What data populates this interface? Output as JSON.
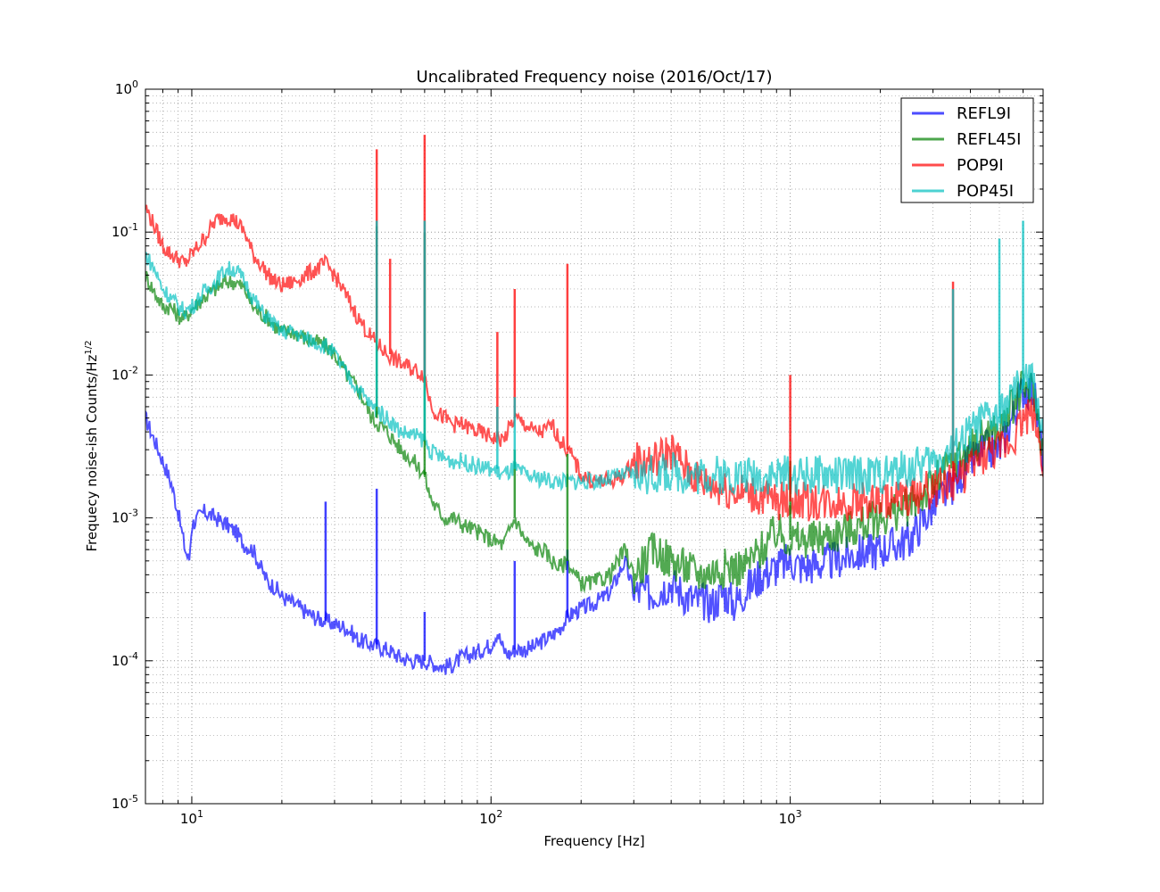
{
  "chart_data": {
    "type": "line",
    "title": "Uncalibrated Frequency noise (2016/Oct/17)",
    "xlabel": "Frequency [Hz]",
    "ylabel": "Frequecy noise-ish Counts/Hz",
    "ylabel_exponent": "1/2",
    "x_scale": "log",
    "y_scale": "log",
    "xlim": [
      7,
      7000
    ],
    "ylim": [
      1e-05,
      1
    ],
    "grid": true,
    "legend_position": "top-right",
    "x_ticks": [
      {
        "value": 10,
        "base": "10",
        "exp": "1"
      },
      {
        "value": 100,
        "base": "10",
        "exp": "2"
      },
      {
        "value": 1000,
        "base": "10",
        "exp": "3"
      }
    ],
    "y_ticks": [
      {
        "value": 1,
        "base": "10",
        "exp": "0"
      },
      {
        "value": 0.1,
        "base": "10",
        "exp": "-1"
      },
      {
        "value": 0.01,
        "base": "10",
        "exp": "-2"
      },
      {
        "value": 0.001,
        "base": "10",
        "exp": "-3"
      },
      {
        "value": 0.0001,
        "base": "10",
        "exp": "-4"
      },
      {
        "value": 1e-05,
        "base": "10",
        "exp": "-5"
      }
    ],
    "series": [
      {
        "name": "REFL9I",
        "color": "#0000ff",
        "x": [
          7,
          7.5,
          8,
          8.5,
          9,
          9.5,
          9.8,
          10,
          10.5,
          11,
          11.5,
          12,
          13,
          14,
          15,
          16,
          17,
          18,
          19,
          20,
          22,
          24,
          26,
          28,
          30,
          33,
          36,
          40,
          45,
          50,
          55,
          60,
          65,
          70,
          75,
          80,
          90,
          100,
          105,
          110,
          115,
          120,
          130,
          140,
          150,
          160,
          170,
          180,
          190,
          200,
          220,
          250,
          280,
          300,
          350,
          400,
          450,
          500,
          550,
          600,
          650,
          700,
          800,
          900,
          1000,
          1100,
          1200,
          1400,
          1600,
          2000,
          2500,
          3000,
          3500,
          4000,
          4500,
          5000,
          5500,
          6000,
          6500,
          7000
        ],
        "y": [
          0.005,
          0.0035,
          0.0025,
          0.0018,
          0.0011,
          0.0006,
          0.0005,
          0.0009,
          0.001,
          0.0011,
          0.00105,
          0.001,
          0.0009,
          0.0008,
          0.00065,
          0.0006,
          0.00045,
          0.00035,
          0.00033,
          0.00028,
          0.00025,
          0.00022,
          0.0002,
          0.00019,
          0.00018,
          0.00017,
          0.00014,
          0.00013,
          0.00012,
          0.000105,
          0.0001,
          0.0001,
          9.5e-05,
          9e-05,
          9.5e-05,
          0.000105,
          0.000115,
          0.00013,
          0.00016,
          0.00012,
          0.00011,
          0.00012,
          0.00012,
          0.000125,
          0.00014,
          0.00015,
          0.00017,
          0.0002,
          0.00022,
          0.00023,
          0.00025,
          0.0003,
          0.0005,
          0.0003,
          0.0003,
          0.00035,
          0.00028,
          0.00026,
          0.00025,
          0.0003,
          0.00025,
          0.0003,
          0.0004,
          0.00045,
          0.0005,
          0.00045,
          0.00047,
          0.0005,
          0.00055,
          0.0006,
          0.0007,
          0.0012,
          0.0017,
          0.0025,
          0.003,
          0.003,
          0.005,
          0.008,
          0.008,
          0.0025
        ]
      },
      {
        "name": "REFL45I",
        "color": "#008000",
        "x": [
          7,
          7.5,
          8,
          8.5,
          9,
          9.5,
          10,
          11,
          12,
          13,
          14,
          15,
          16,
          17,
          18,
          19,
          20,
          22,
          24,
          26,
          28,
          30,
          33,
          36,
          40,
          45,
          50,
          55,
          60,
          62,
          65,
          70,
          75,
          80,
          90,
          100,
          110,
          120,
          130,
          140,
          150,
          160,
          170,
          180,
          190,
          200,
          220,
          250,
          280,
          300,
          350,
          400,
          450,
          500,
          600,
          700,
          800,
          900,
          1000,
          1200,
          1500,
          2000,
          2500,
          3000,
          3500,
          4000,
          4500,
          5000,
          5500,
          6000,
          6500,
          7000
        ],
        "y": [
          0.05,
          0.038,
          0.03,
          0.03,
          0.026,
          0.025,
          0.029,
          0.035,
          0.04,
          0.045,
          0.045,
          0.04,
          0.03,
          0.027,
          0.025,
          0.022,
          0.02,
          0.02,
          0.018,
          0.017,
          0.016,
          0.014,
          0.01,
          0.008,
          0.005,
          0.004,
          0.003,
          0.0025,
          0.002,
          0.0015,
          0.0012,
          0.001,
          0.001,
          0.0009,
          0.0008,
          0.0007,
          0.00065,
          0.001,
          0.0007,
          0.0006,
          0.0006,
          0.0005,
          0.00045,
          0.0005,
          0.0004,
          0.00035,
          0.00035,
          0.0004,
          0.0006,
          0.0004,
          0.0006,
          0.0005,
          0.00045,
          0.0004,
          0.00045,
          0.00045,
          0.0006,
          0.0008,
          0.0007,
          0.0007,
          0.0008,
          0.001,
          0.0012,
          0.0017,
          0.0025,
          0.003,
          0.004,
          0.004,
          0.006,
          0.008,
          0.008,
          0.003
        ]
      },
      {
        "name": "POP9I",
        "color": "#ff0000",
        "x": [
          7,
          7.5,
          8,
          8.5,
          9,
          9.5,
          10,
          11,
          12,
          13,
          14,
          15,
          16,
          17,
          18,
          19,
          20,
          22,
          24,
          26,
          28,
          30,
          33,
          36,
          40,
          45,
          50,
          55,
          60,
          62,
          65,
          70,
          75,
          80,
          90,
          100,
          110,
          120,
          130,
          140,
          150,
          160,
          170,
          180,
          190,
          200,
          220,
          250,
          280,
          300,
          350,
          400,
          450,
          500,
          600,
          700,
          800,
          900,
          1000,
          1200,
          1500,
          2000,
          2500,
          3000,
          3500,
          4000,
          4500,
          5000,
          5500,
          6000,
          6500,
          7000
        ],
        "y": [
          0.15,
          0.11,
          0.08,
          0.07,
          0.065,
          0.06,
          0.07,
          0.09,
          0.12,
          0.13,
          0.12,
          0.1,
          0.07,
          0.06,
          0.05,
          0.045,
          0.042,
          0.045,
          0.05,
          0.055,
          0.06,
          0.05,
          0.035,
          0.025,
          0.018,
          0.014,
          0.012,
          0.011,
          0.01,
          0.007,
          0.0055,
          0.005,
          0.0045,
          0.0045,
          0.004,
          0.0037,
          0.0035,
          0.005,
          0.0045,
          0.004,
          0.004,
          0.0045,
          0.0035,
          0.003,
          0.0025,
          0.002,
          0.0018,
          0.0018,
          0.002,
          0.0025,
          0.0025,
          0.003,
          0.0022,
          0.0018,
          0.0016,
          0.0015,
          0.0014,
          0.0013,
          0.0013,
          0.0013,
          0.0013,
          0.0013,
          0.0014,
          0.0016,
          0.0018,
          0.0022,
          0.0028,
          0.003,
          0.0035,
          0.005,
          0.0055,
          0.0025
        ]
      },
      {
        "name": "POP45I",
        "color": "#00bfbf",
        "x": [
          7,
          7.5,
          8,
          8.5,
          9,
          9.5,
          10,
          11,
          12,
          13,
          14,
          15,
          16,
          17,
          18,
          19,
          20,
          22,
          24,
          26,
          28,
          30,
          33,
          36,
          40,
          45,
          50,
          55,
          60,
          62,
          65,
          70,
          75,
          80,
          90,
          100,
          110,
          120,
          130,
          140,
          150,
          160,
          170,
          180,
          190,
          200,
          220,
          250,
          280,
          300,
          350,
          400,
          450,
          500,
          600,
          700,
          800,
          900,
          1000,
          1200,
          1500,
          2000,
          2500,
          3000,
          3500,
          4000,
          4500,
          5000,
          5500,
          6000,
          6500,
          7000
        ],
        "y": [
          0.07,
          0.055,
          0.04,
          0.035,
          0.03,
          0.028,
          0.03,
          0.038,
          0.045,
          0.055,
          0.055,
          0.045,
          0.035,
          0.028,
          0.025,
          0.022,
          0.02,
          0.02,
          0.018,
          0.017,
          0.016,
          0.014,
          0.01,
          0.008,
          0.006,
          0.005,
          0.004,
          0.0038,
          0.0035,
          0.003,
          0.0028,
          0.0026,
          0.0025,
          0.0025,
          0.0023,
          0.0022,
          0.002,
          0.0022,
          0.002,
          0.0019,
          0.0019,
          0.0018,
          0.0018,
          0.0018,
          0.0018,
          0.0018,
          0.0018,
          0.0019,
          0.002,
          0.002,
          0.002,
          0.0021,
          0.002,
          0.002,
          0.002,
          0.002,
          0.002,
          0.002,
          0.002,
          0.002,
          0.002,
          0.002,
          0.0022,
          0.0025,
          0.003,
          0.004,
          0.005,
          0.005,
          0.007,
          0.009,
          0.009,
          0.004
        ]
      }
    ],
    "spikes": [
      {
        "series": "REFL9I",
        "x": 28,
        "peak": 0.0013,
        "base": 0.00019
      },
      {
        "series": "REFL9I",
        "x": 41.5,
        "peak": 0.0016,
        "base": 0.00013
      },
      {
        "series": "REFL9I",
        "x": 60,
        "peak": 0.00022,
        "base": 0.0001
      },
      {
        "series": "REFL9I",
        "x": 120,
        "peak": 0.0005,
        "base": 0.00012
      },
      {
        "series": "REFL9I",
        "x": 180,
        "peak": 0.0006,
        "base": 0.0002
      },
      {
        "series": "REFL45I",
        "x": 41.5,
        "peak": 0.11,
        "base": 0.005
      },
      {
        "series": "REFL45I",
        "x": 60,
        "peak": 0.1,
        "base": 0.002
      },
      {
        "series": "REFL45I",
        "x": 120,
        "peak": 0.003,
        "base": 0.001
      },
      {
        "series": "REFL45I",
        "x": 180,
        "peak": 0.0028,
        "base": 0.0005
      },
      {
        "series": "REFL45I",
        "x": 1000,
        "peak": 0.0025,
        "base": 0.0007
      },
      {
        "series": "POP9I",
        "x": 41.5,
        "peak": 0.38,
        "base": 0.018
      },
      {
        "series": "POP9I",
        "x": 46,
        "peak": 0.065,
        "base": 0.014
      },
      {
        "series": "POP9I",
        "x": 60,
        "peak": 0.48,
        "base": 0.01
      },
      {
        "series": "POP9I",
        "x": 105,
        "peak": 0.02,
        "base": 0.0037
      },
      {
        "series": "POP9I",
        "x": 120,
        "peak": 0.04,
        "base": 0.005
      },
      {
        "series": "POP9I",
        "x": 180,
        "peak": 0.06,
        "base": 0.003
      },
      {
        "series": "POP9I",
        "x": 1000,
        "peak": 0.01,
        "base": 0.0013
      },
      {
        "series": "POP9I",
        "x": 3500,
        "peak": 0.045,
        "base": 0.0018
      },
      {
        "series": "POP45I",
        "x": 41.5,
        "peak": 0.12,
        "base": 0.006
      },
      {
        "series": "POP45I",
        "x": 60,
        "peak": 0.12,
        "base": 0.0035
      },
      {
        "series": "POP45I",
        "x": 105,
        "peak": 0.006,
        "base": 0.0022
      },
      {
        "series": "POP45I",
        "x": 120,
        "peak": 0.007,
        "base": 0.0022
      },
      {
        "series": "POP45I",
        "x": 3500,
        "peak": 0.04,
        "base": 0.0025
      },
      {
        "series": "POP45I",
        "x": 5000,
        "peak": 0.09,
        "base": 0.005
      },
      {
        "series": "POP45I",
        "x": 6000,
        "peak": 0.12,
        "base": 0.008
      }
    ]
  }
}
